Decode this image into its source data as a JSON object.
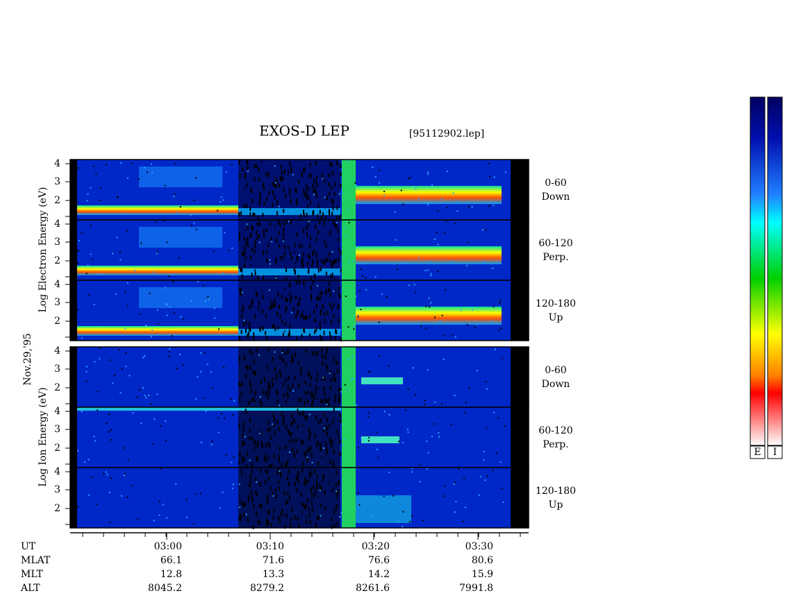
{
  "header": {
    "title": "EXOS-D LEP",
    "file": "[95112902.lep]",
    "date": "Nov.29,'95"
  },
  "electron": {
    "axis_label": "Log Electron Energy (eV)",
    "panels": [
      {
        "label": "0-60",
        "direction": "Down",
        "ticks": [
          "4",
          "3",
          "2"
        ]
      },
      {
        "label": "60-120",
        "direction": "Perp.",
        "ticks": [
          "4",
          "3",
          "2"
        ]
      },
      {
        "label": "120-180",
        "direction": "Up",
        "ticks": [
          "4",
          "3",
          "2"
        ]
      }
    ]
  },
  "ion": {
    "axis_label": "Log Ion Energy (eV)",
    "panels": [
      {
        "label": "0-60",
        "direction": "Down",
        "ticks": [
          "4",
          "3",
          "2"
        ]
      },
      {
        "label": "60-120",
        "direction": "Perp.",
        "ticks": [
          "4",
          "3",
          "2"
        ]
      },
      {
        "label": "120-180",
        "direction": "Up",
        "ticks": [
          "4",
          "3",
          "2"
        ]
      }
    ]
  },
  "orbit": {
    "rows": [
      {
        "name": "UT",
        "values": [
          "03:00",
          "03:10",
          "03:20",
          "03:30"
        ]
      },
      {
        "name": "MLAT",
        "values": [
          "66.1",
          "71.6",
          "76.6",
          "80.6"
        ]
      },
      {
        "name": "MLT",
        "values": [
          "12.8",
          "13.3",
          "14.2",
          "15.9"
        ]
      },
      {
        "name": "ALT",
        "values": [
          "8045.2",
          "8279.2",
          "8261.6",
          "7991.8"
        ]
      }
    ]
  },
  "colorbars": [
    "E",
    "I"
  ]
}
